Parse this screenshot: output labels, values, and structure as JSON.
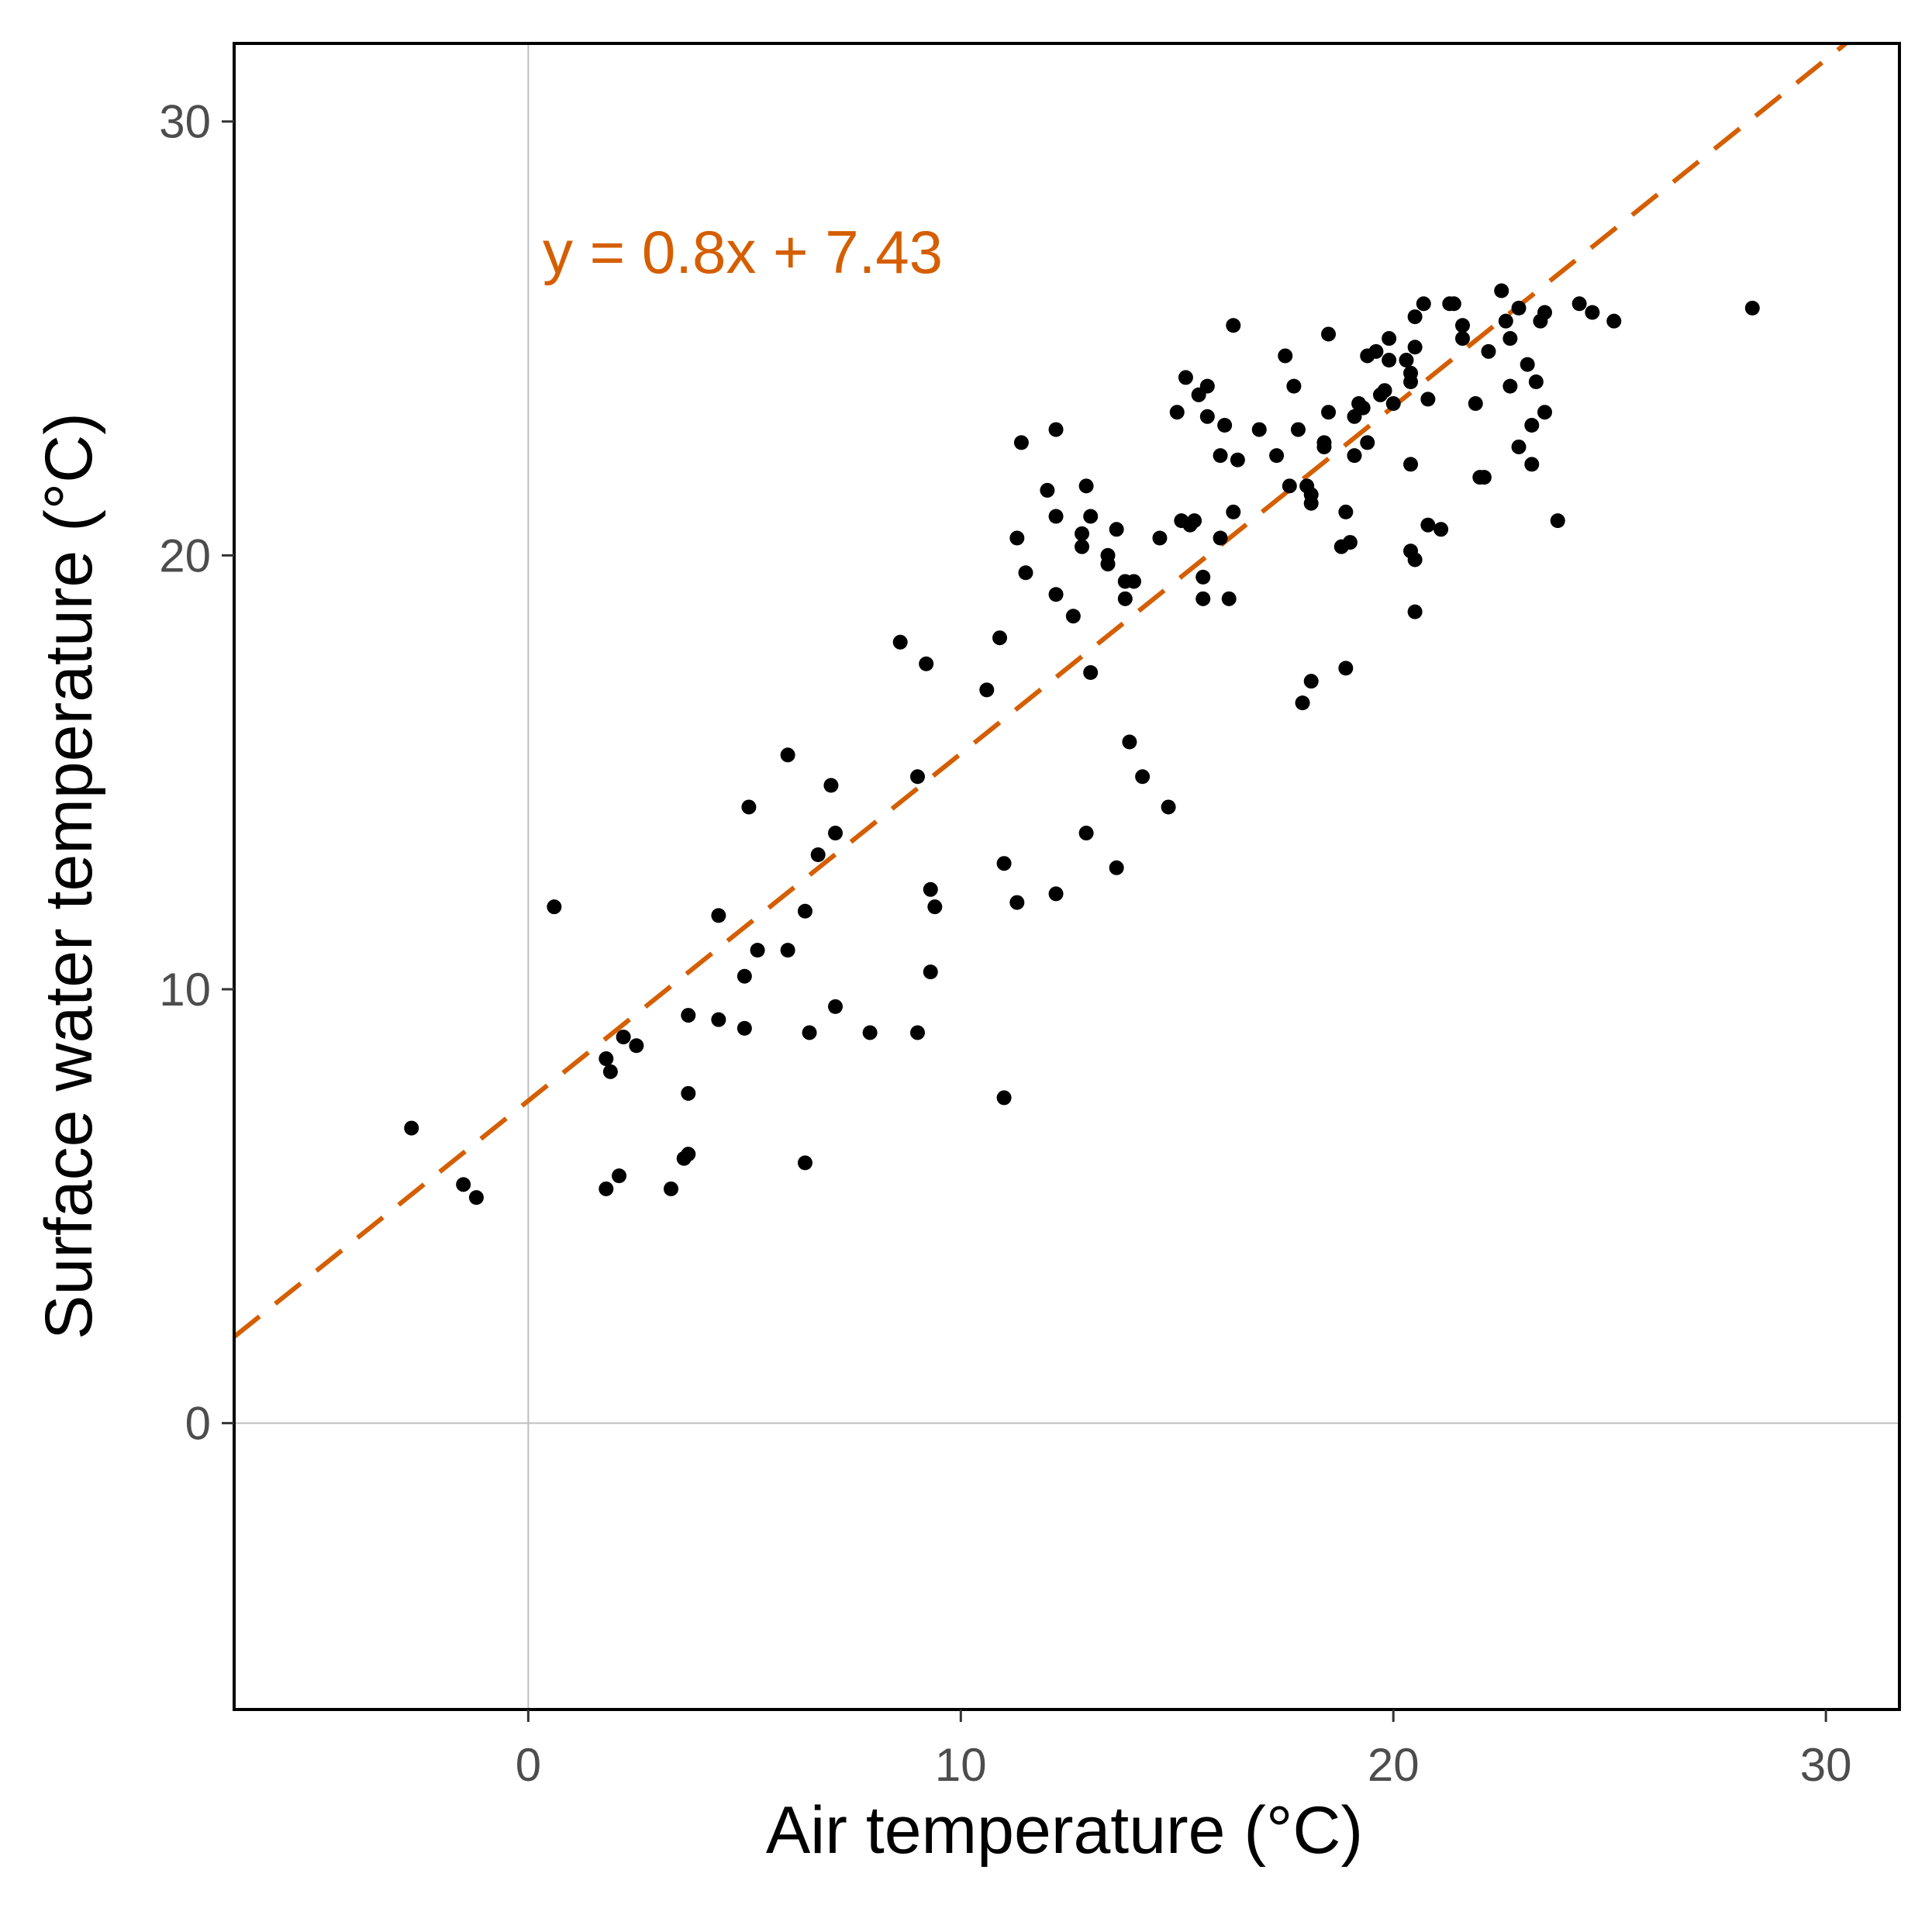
{
  "chart_data": {
    "type": "scatter",
    "title": "",
    "xlabel": "Air temperature (°C)",
    "ylabel": "Surface water temperature (°C)",
    "xlim": [
      -6.8,
      31.7
    ],
    "ylim": [
      -6.6,
      31.8
    ],
    "x_ticks": [
      0,
      10,
      20,
      30
    ],
    "y_ticks": [
      0,
      10,
      20,
      30
    ],
    "x_tick_labels": [
      "0",
      "10",
      "20",
      "30"
    ],
    "y_tick_labels": [
      "0",
      "10",
      "20",
      "30"
    ],
    "grid": "zero lines only",
    "regression": {
      "slope": 0.8,
      "intercept": 7.43,
      "label": "y = 0.8x + 7.43",
      "color": "#D55E00",
      "style": "dashed"
    },
    "point_color": "#000000",
    "points": [
      [
        -2.7,
        6.8
      ],
      [
        -1.5,
        5.5
      ],
      [
        -1.2,
        5.2
      ],
      [
        0.6,
        11.9
      ],
      [
        1.8,
        8.4
      ],
      [
        1.9,
        8.1
      ],
      [
        2.2,
        8.9
      ],
      [
        2.5,
        8.7
      ],
      [
        1.8,
        5.4
      ],
      [
        2.1,
        5.7
      ],
      [
        3.3,
        5.4
      ],
      [
        3.6,
        6.1
      ],
      [
        3.7,
        6.2
      ],
      [
        3.7,
        7.6
      ],
      [
        3.7,
        9.4
      ],
      [
        4.4,
        11.7
      ],
      [
        4.4,
        9.3
      ],
      [
        5.0,
        9.1
      ],
      [
        5.0,
        10.3
      ],
      [
        5.1,
        14.2
      ],
      [
        5.3,
        10.9
      ],
      [
        6.0,
        10.9
      ],
      [
        6.0,
        15.4
      ],
      [
        6.4,
        11.8
      ],
      [
        6.5,
        9.0
      ],
      [
        6.4,
        6.0
      ],
      [
        6.7,
        13.1
      ],
      [
        7.0,
        14.7
      ],
      [
        7.1,
        13.6
      ],
      [
        7.1,
        9.6
      ],
      [
        7.9,
        9.0
      ],
      [
        8.6,
        18.0
      ],
      [
        9.0,
        14.9
      ],
      [
        9.0,
        9.0
      ],
      [
        9.2,
        17.5
      ],
      [
        9.3,
        12.3
      ],
      [
        9.3,
        10.4
      ],
      [
        9.4,
        11.9
      ],
      [
        10.6,
        16.9
      ],
      [
        10.9,
        18.1
      ],
      [
        11.0,
        12.9
      ],
      [
        11.0,
        7.5
      ],
      [
        11.3,
        20.4
      ],
      [
        11.3,
        12.0
      ],
      [
        11.4,
        22.6
      ],
      [
        11.5,
        19.6
      ],
      [
        12.0,
        21.5
      ],
      [
        12.2,
        22.9
      ],
      [
        12.2,
        20.9
      ],
      [
        12.2,
        19.1
      ],
      [
        12.2,
        12.2
      ],
      [
        12.6,
        18.6
      ],
      [
        12.8,
        20.5
      ],
      [
        12.8,
        20.2
      ],
      [
        12.9,
        21.6
      ],
      [
        12.9,
        13.6
      ],
      [
        13.0,
        20.9
      ],
      [
        13.0,
        17.3
      ],
      [
        13.4,
        19.8
      ],
      [
        13.4,
        20.0
      ],
      [
        13.6,
        20.6
      ],
      [
        13.6,
        12.8
      ],
      [
        13.8,
        19.4
      ],
      [
        13.8,
        19.0
      ],
      [
        13.9,
        15.7
      ],
      [
        14.0,
        19.4
      ],
      [
        14.2,
        14.9
      ],
      [
        14.6,
        20.4
      ],
      [
        14.8,
        14.2
      ],
      [
        15.0,
        23.3
      ],
      [
        15.1,
        20.8
      ],
      [
        15.3,
        20.7
      ],
      [
        15.2,
        24.1
      ],
      [
        15.4,
        20.8
      ],
      [
        15.5,
        23.7
      ],
      [
        15.6,
        19.5
      ],
      [
        15.6,
        19.0
      ],
      [
        15.7,
        23.9
      ],
      [
        15.7,
        23.2
      ],
      [
        16.0,
        20.4
      ],
      [
        16.0,
        22.3
      ],
      [
        16.1,
        23.0
      ],
      [
        16.2,
        19.0
      ],
      [
        16.3,
        25.3
      ],
      [
        16.3,
        21.0
      ],
      [
        16.4,
        22.2
      ],
      [
        16.9,
        22.9
      ],
      [
        17.3,
        22.3
      ],
      [
        17.5,
        24.6
      ],
      [
        17.7,
        23.9
      ],
      [
        17.8,
        22.9
      ],
      [
        17.6,
        21.6
      ],
      [
        18.0,
        21.6
      ],
      [
        18.1,
        21.4
      ],
      [
        18.1,
        21.2
      ],
      [
        17.9,
        16.6
      ],
      [
        18.1,
        17.1
      ],
      [
        18.4,
        22.5
      ],
      [
        18.4,
        22.6
      ],
      [
        18.5,
        25.1
      ],
      [
        18.5,
        23.3
      ],
      [
        18.8,
        20.2
      ],
      [
        18.9,
        21.0
      ],
      [
        19.0,
        20.3
      ],
      [
        18.9,
        17.4
      ],
      [
        19.1,
        22.3
      ],
      [
        19.1,
        23.2
      ],
      [
        19.2,
        23.5
      ],
      [
        19.3,
        23.4
      ],
      [
        19.4,
        22.6
      ],
      [
        19.4,
        24.6
      ],
      [
        19.6,
        24.7
      ],
      [
        19.7,
        23.7
      ],
      [
        19.8,
        23.8
      ],
      [
        19.9,
        25.0
      ],
      [
        19.9,
        24.5
      ],
      [
        20.0,
        23.5
      ],
      [
        20.3,
        24.5
      ],
      [
        20.4,
        24.2
      ],
      [
        20.4,
        24.0
      ],
      [
        20.5,
        24.8
      ],
      [
        20.5,
        25.5
      ],
      [
        20.4,
        22.1
      ],
      [
        20.4,
        20.1
      ],
      [
        20.5,
        19.9
      ],
      [
        20.5,
        18.7
      ],
      [
        20.7,
        25.8
      ],
      [
        20.8,
        23.6
      ],
      [
        20.8,
        20.7
      ],
      [
        21.1,
        20.6
      ],
      [
        21.3,
        25.8
      ],
      [
        21.4,
        25.8
      ],
      [
        21.6,
        25.0
      ],
      [
        21.6,
        25.3
      ],
      [
        21.9,
        23.5
      ],
      [
        22.0,
        21.8
      ],
      [
        22.1,
        21.8
      ],
      [
        22.2,
        24.7
      ],
      [
        22.5,
        26.1
      ],
      [
        22.6,
        25.4
      ],
      [
        22.7,
        23.9
      ],
      [
        22.7,
        25.0
      ],
      [
        22.9,
        25.7
      ],
      [
        22.9,
        22.5
      ],
      [
        23.1,
        24.4
      ],
      [
        23.2,
        23.0
      ],
      [
        23.2,
        22.1
      ],
      [
        23.3,
        24.0
      ],
      [
        23.4,
        25.4
      ],
      [
        23.5,
        25.6
      ],
      [
        23.5,
        23.3
      ],
      [
        23.8,
        20.8
      ],
      [
        24.3,
        25.8
      ],
      [
        24.6,
        25.6
      ],
      [
        25.1,
        25.4
      ],
      [
        28.3,
        25.7
      ]
    ]
  }
}
